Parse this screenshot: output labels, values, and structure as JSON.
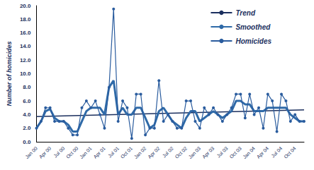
{
  "chart_data": {
    "type": "line",
    "y_label": "Number of homicides",
    "categories": [
      "Jan 00",
      null,
      null,
      "Apr 00",
      null,
      null,
      "Jul 00",
      null,
      null,
      "Oct 00",
      null,
      null,
      "Jan 01",
      null,
      null,
      "Apr 01",
      null,
      null,
      "Jul 01",
      null,
      null,
      "Oct 01",
      null,
      null,
      "Jan 02",
      null,
      null,
      "Apr 02",
      null,
      null,
      "Jul 02",
      null,
      null,
      "Oct 02",
      null,
      null,
      "Jan 03",
      null,
      null,
      "Apr 03",
      null,
      null,
      "Jul 03",
      null,
      null,
      "Oct 03",
      null,
      null,
      "Jan 04",
      null,
      null,
      "Apr 04",
      null,
      null,
      "Jul 04",
      null,
      null,
      "Oct 04",
      null,
      null
    ],
    "series": [
      {
        "name": "Trend",
        "color": "#1b2f5e",
        "marker": "none",
        "line_style": "solid",
        "values": [
          3.7,
          null,
          null,
          null,
          null,
          null,
          null,
          null,
          null,
          null,
          null,
          null,
          null,
          null,
          null,
          null,
          null,
          null,
          null,
          null,
          null,
          null,
          null,
          null,
          null,
          null,
          null,
          null,
          null,
          null,
          null,
          null,
          null,
          null,
          null,
          null,
          null,
          null,
          null,
          null,
          null,
          null,
          null,
          null,
          null,
          null,
          null,
          null,
          null,
          null,
          null,
          null,
          null,
          null,
          null,
          null,
          null,
          null,
          null,
          4.7
        ]
      },
      {
        "name": "Smoothed",
        "color": "#2f6aa8",
        "marker": "none",
        "line_style": "solid",
        "values": [
          2,
          3,
          4.5,
          4.8,
          3.5,
          3,
          3,
          2.5,
          1.5,
          1.5,
          3,
          4.5,
          5,
          5,
          5,
          4,
          8,
          9,
          4,
          5,
          4,
          4,
          5,
          5,
          3.5,
          2,
          2.5,
          4.5,
          5,
          4,
          3,
          2.5,
          2,
          3.5,
          4.5,
          4.5,
          3,
          3.5,
          4,
          4.5,
          4,
          3.5,
          4,
          4.5,
          6,
          6,
          5.5,
          5.5,
          4.5,
          4.5,
          4.5,
          5,
          5,
          5,
          5,
          5,
          4,
          3.5,
          3,
          3
        ]
      },
      {
        "name": "Homicides",
        "color": "#2a5c9e",
        "marker": "circle",
        "line_style": "solid",
        "values": [
          2,
          3,
          5,
          5,
          3,
          3,
          3,
          2,
          1,
          1,
          5,
          6,
          5,
          6,
          4,
          2,
          8,
          19.5,
          3,
          6,
          5,
          0.5,
          7,
          7,
          1,
          2,
          2,
          9,
          3,
          4,
          3,
          2,
          2,
          6,
          6,
          3,
          2,
          5,
          4,
          5,
          4,
          3,
          4,
          5,
          7,
          7,
          3.5,
          7,
          4,
          5,
          2,
          7,
          6,
          1.5,
          7,
          6,
          3,
          4,
          3,
          3
        ]
      }
    ],
    "ylim": [
      0,
      20
    ],
    "yticks": [
      {
        "value": 0,
        "label": "0.0"
      },
      {
        "value": 2,
        "label": "2.0"
      },
      {
        "value": 4,
        "label": "4.0"
      },
      {
        "value": 6,
        "label": "6.0"
      },
      {
        "value": 8,
        "label": "8.0"
      },
      {
        "value": 10,
        "label": "10.0"
      },
      {
        "value": 12,
        "label": "12.0"
      },
      {
        "value": 14,
        "label": "14.0"
      },
      {
        "value": 16,
        "label": "16.0"
      },
      {
        "value": 18,
        "label": "18.0"
      },
      {
        "value": 20,
        "label": "20.0"
      }
    ],
    "grid": false,
    "legend": "upper right"
  }
}
